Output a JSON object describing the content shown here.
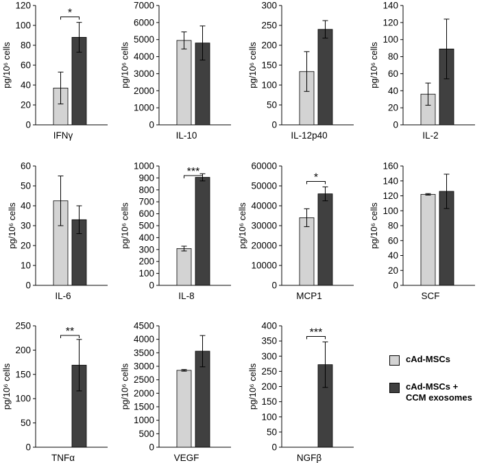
{
  "colors": {
    "control": "#d3d3d3",
    "treated": "#404040",
    "axis": "#000000"
  },
  "legend": {
    "items": [
      {
        "label": " cAd-MSCs",
        "color": "#d3d3d3"
      },
      {
        "label": "cAd-MSCs +\nCCM exosomes",
        "color": "#404040"
      }
    ]
  },
  "chart_data": [
    {
      "type": "bar",
      "title": "IFNγ",
      "ylabel": "pg/10⁶ cells",
      "ylim": [
        0,
        120
      ],
      "step": 20,
      "series": [
        {
          "name": "cAd-MSCs",
          "value": 37,
          "error": 16
        },
        {
          "name": "cAd-MSCs + CCM exosomes",
          "value": 88,
          "error": 15
        }
      ],
      "significance": "*"
    },
    {
      "type": "bar",
      "title": "IL-10",
      "ylabel": "pg/10⁶ cells",
      "ylim": [
        0,
        7000
      ],
      "step": 1000,
      "series": [
        {
          "name": "cAd-MSCs",
          "value": 4950,
          "error": 500
        },
        {
          "name": "cAd-MSCs + CCM exosomes",
          "value": 4800,
          "error": 1000
        }
      ],
      "significance": ""
    },
    {
      "type": "bar",
      "title": "IL-12p40",
      "ylabel": "pg/10⁶ cells",
      "ylim": [
        0,
        300
      ],
      "step": 50,
      "series": [
        {
          "name": "cAd-MSCs",
          "value": 134,
          "error": 50
        },
        {
          "name": "cAd-MSCs + CCM exosomes",
          "value": 240,
          "error": 22
        }
      ],
      "significance": ""
    },
    {
      "type": "bar",
      "title": "IL-2",
      "ylabel": "pg/10⁶ cells",
      "ylim": [
        0,
        140
      ],
      "step": 20,
      "series": [
        {
          "name": "cAd-MSCs",
          "value": 36,
          "error": 13
        },
        {
          "name": "cAd-MSCs + CCM exosomes",
          "value": 89,
          "error": 35
        }
      ],
      "significance": ""
    },
    {
      "type": "bar",
      "title": "IL-6",
      "ylabel": "pg/10⁶ cells",
      "ylim": [
        0,
        60
      ],
      "step": 10,
      "series": [
        {
          "name": "cAd-MSCs",
          "value": 42.5,
          "error": 12.5
        },
        {
          "name": "cAd-MSCs + CCM exosomes",
          "value": 33,
          "error": 7
        }
      ],
      "significance": ""
    },
    {
      "type": "bar",
      "title": "IL-8",
      "ylabel": "pg/10⁶ cells",
      "ylim": [
        0,
        1000
      ],
      "step": 100,
      "series": [
        {
          "name": "cAd-MSCs",
          "value": 308,
          "error": 20
        },
        {
          "name": "cAd-MSCs + CCM exosomes",
          "value": 905,
          "error": 30
        }
      ],
      "significance": "***"
    },
    {
      "type": "bar",
      "title": "MCP1",
      "ylabel": "pg/10⁶ cells",
      "ylim": [
        0,
        60000
      ],
      "step": 10000,
      "series": [
        {
          "name": "cAd-MSCs",
          "value": 34000,
          "error": 4500
        },
        {
          "name": "cAd-MSCs + CCM exosomes",
          "value": 46000,
          "error": 3500
        }
      ],
      "significance": "*"
    },
    {
      "type": "bar",
      "title": "SCF",
      "ylabel": "pg/10⁶ cells",
      "ylim": [
        0,
        160
      ],
      "step": 20,
      "series": [
        {
          "name": "cAd-MSCs",
          "value": 122,
          "error": 1
        },
        {
          "name": "cAd-MSCs + CCM exosomes",
          "value": 126,
          "error": 23
        }
      ],
      "significance": ""
    },
    {
      "type": "bar",
      "title": "TNFα",
      "ylabel": "pg/10⁶ cells",
      "ylim": [
        0,
        250
      ],
      "step": 50,
      "series": [
        {
          "name": "cAd-MSCs",
          "value": 0,
          "error": 0
        },
        {
          "name": "cAd-MSCs + CCM exosomes",
          "value": 169,
          "error": 53
        }
      ],
      "significance": "**"
    },
    {
      "type": "bar",
      "title": "VEGF",
      "ylabel": "pg/10⁶ cells",
      "ylim": [
        0,
        4500
      ],
      "step": 500,
      "series": [
        {
          "name": "cAd-MSCs",
          "value": 2850,
          "error": 30
        },
        {
          "name": "cAd-MSCs + CCM exosomes",
          "value": 3560,
          "error": 580
        }
      ],
      "significance": ""
    },
    {
      "type": "bar",
      "title": "NGFβ",
      "ylabel": "pg/10⁶ cells",
      "ylim": [
        0,
        400
      ],
      "step": 50,
      "series": [
        {
          "name": "cAd-MSCs",
          "value": 0,
          "error": 0
        },
        {
          "name": "cAd-MSCs + CCM exosomes",
          "value": 272,
          "error": 75
        }
      ],
      "significance": "***"
    }
  ]
}
